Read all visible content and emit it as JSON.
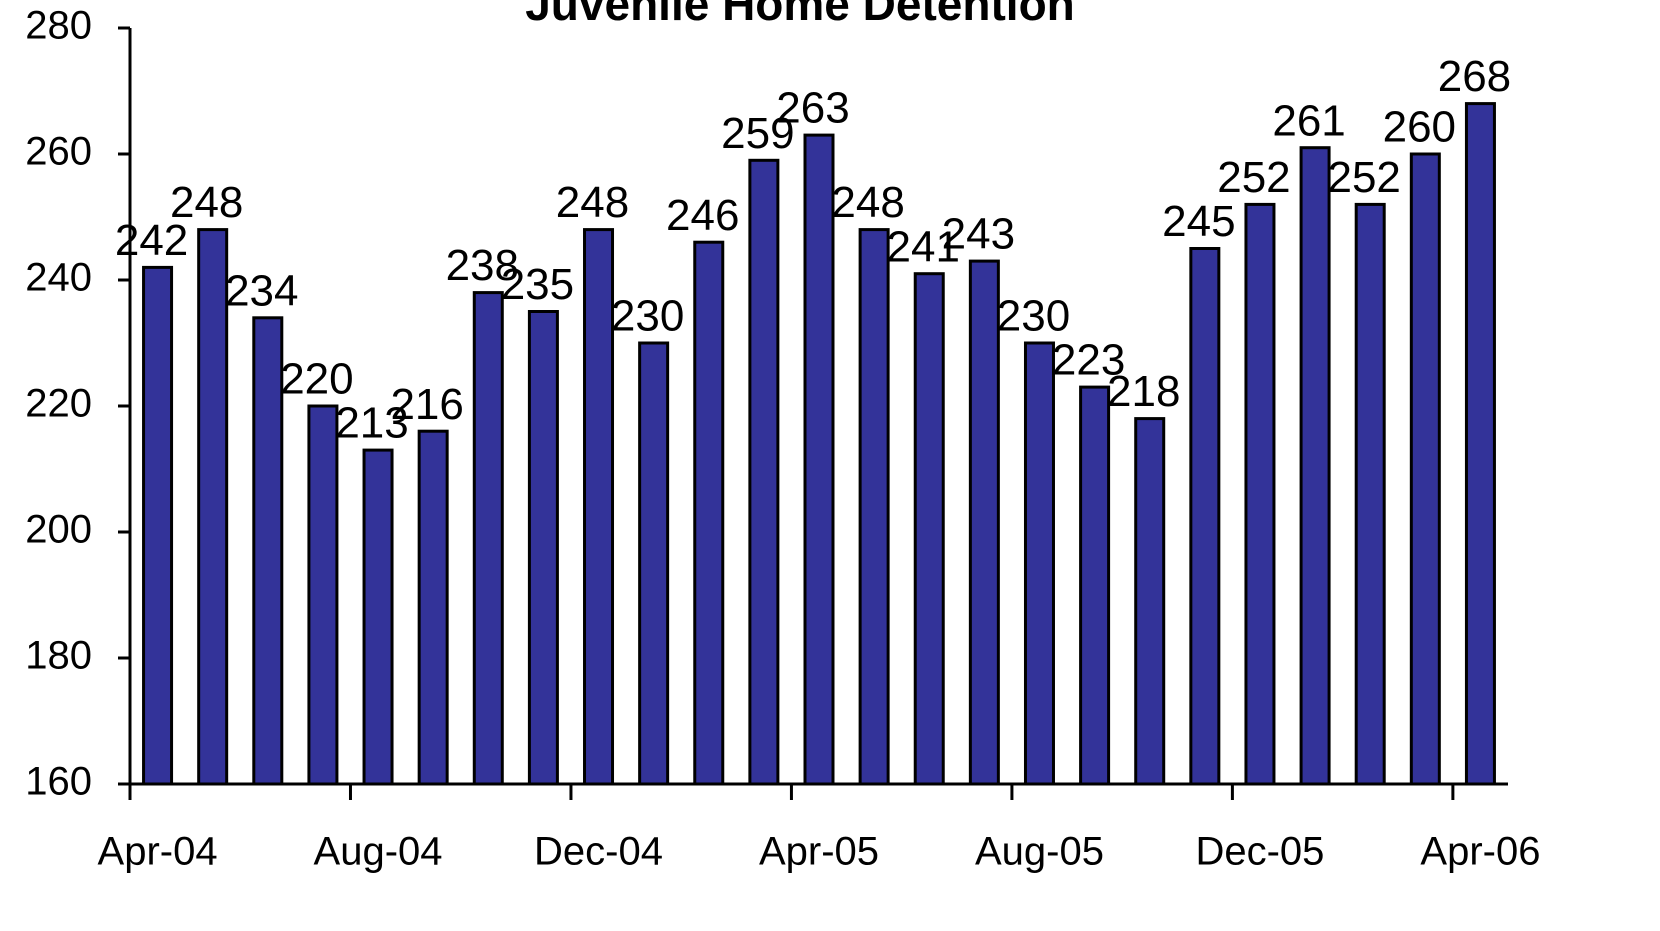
{
  "chart_data": {
    "type": "bar",
    "title": "Juvenile Home Detention",
    "categories": [
      "Apr-04",
      null,
      null,
      null,
      "Aug-04",
      null,
      null,
      null,
      "Dec-04",
      null,
      null,
      null,
      "Apr-05",
      null,
      null,
      null,
      "Aug-05",
      null,
      null,
      null,
      "Dec-05",
      null,
      null,
      null,
      "Apr-06"
    ],
    "values": [
      242,
      248,
      234,
      220,
      213,
      216,
      238,
      235,
      248,
      230,
      246,
      259,
      263,
      248,
      241,
      243,
      230,
      223,
      218,
      245,
      252,
      261,
      252,
      260,
      268
    ],
    "color": "#333399",
    "ylim": [
      160,
      280
    ],
    "yticks": [
      160,
      180,
      200,
      220,
      240,
      260,
      280
    ],
    "grid": false
  }
}
